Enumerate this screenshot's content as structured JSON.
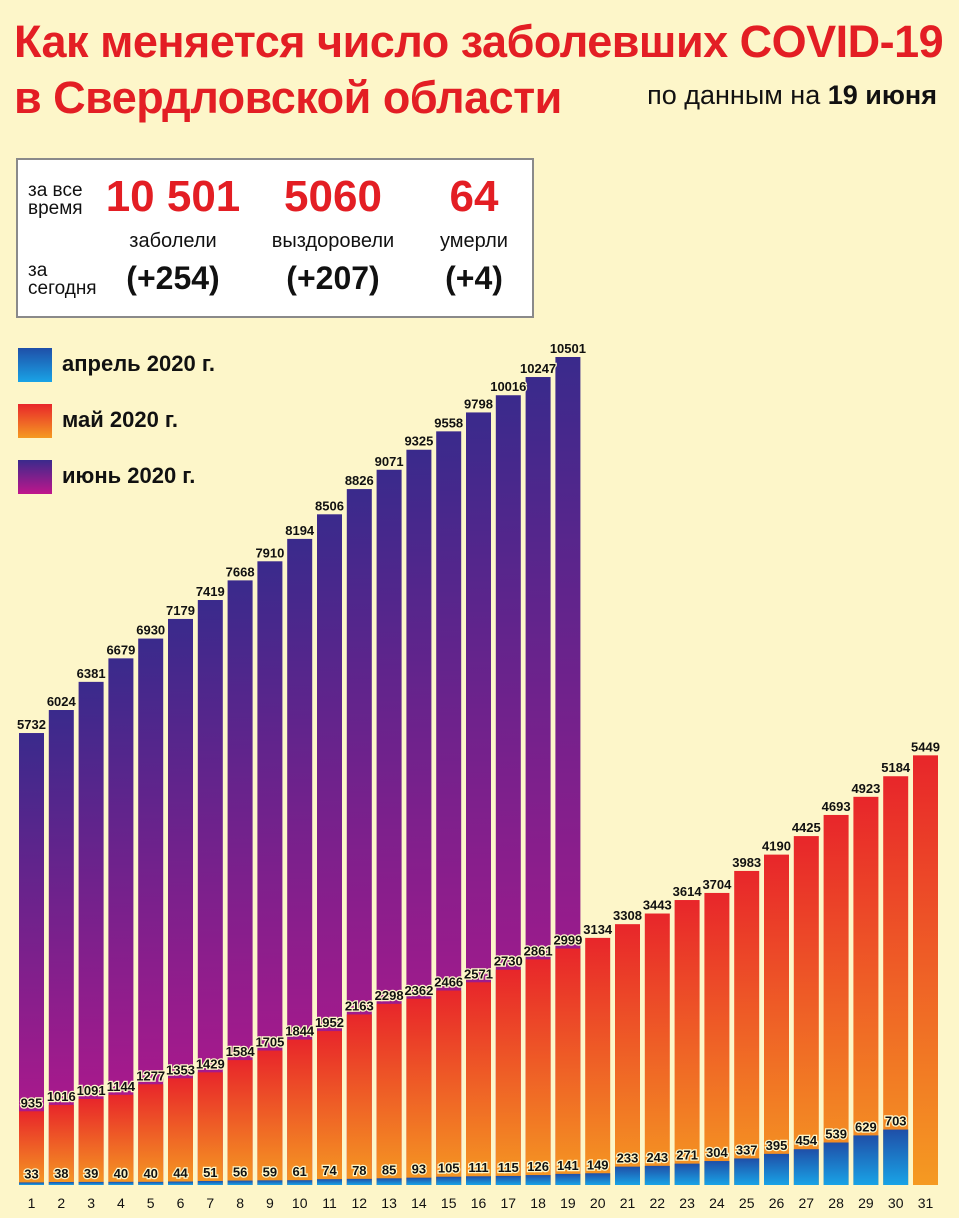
{
  "header": {
    "title_line1": "Как  меняется число  заболевших COVID-19",
    "title_line2": "в Свердловской области",
    "subtitle_prefix": "по данным на ",
    "subtitle_date": "19 июня"
  },
  "stats": {
    "label_all_time": "за все время",
    "label_today": "за сегодня",
    "items": [
      {
        "value": "10 501",
        "caption": "заболели",
        "delta": "(+254)"
      },
      {
        "value": "5060",
        "caption": "выздоровели",
        "delta": "(+207)"
      },
      {
        "value": "64",
        "caption": "умерли",
        "delta": "(+4)"
      }
    ]
  },
  "legend": [
    {
      "label": "апрель 2020 г.",
      "color_top": "#1f4fa8",
      "color_bottom": "#19a3e6"
    },
    {
      "label": "май 2020 г.",
      "color_top": "#e8262a",
      "color_bottom": "#f59a22"
    },
    {
      "label": "июнь 2020 г.",
      "color_top": "#3a2a8c",
      "color_bottom": "#c0168c"
    }
  ],
  "chart_data": {
    "type": "bar",
    "categories": [
      "1",
      "2",
      "3",
      "4",
      "5",
      "6",
      "7",
      "8",
      "9",
      "10",
      "11",
      "12",
      "13",
      "14",
      "15",
      "16",
      "17",
      "18",
      "19",
      "20",
      "21",
      "22",
      "23",
      "24",
      "25",
      "26",
      "27",
      "28",
      "29",
      "30",
      "31"
    ],
    "series": [
      {
        "name": "апрель 2020 г.",
        "values": [
          33,
          38,
          39,
          40,
          40,
          44,
          51,
          56,
          59,
          61,
          74,
          78,
          85,
          93,
          105,
          111,
          115,
          126,
          141,
          149,
          233,
          243,
          271,
          304,
          337,
          395,
          454,
          539,
          629,
          703,
          null
        ]
      },
      {
        "name": "май 2020 г.",
        "values": [
          935,
          1016,
          1091,
          1144,
          1277,
          1353,
          1429,
          1584,
          1705,
          1844,
          1952,
          2163,
          2298,
          2362,
          2466,
          2571,
          2730,
          2861,
          2999,
          3134,
          3308,
          3443,
          3614,
          3704,
          3983,
          4190,
          4425,
          4693,
          4923,
          5184,
          5449
        ]
      },
      {
        "name": "июнь 2020 г.",
        "values": [
          5732,
          6024,
          6381,
          6679,
          6930,
          7179,
          7419,
          7668,
          7910,
          8194,
          8506,
          8826,
          9071,
          9325,
          9558,
          9798,
          10016,
          10247,
          10501,
          null,
          null,
          null,
          null,
          null,
          null,
          null,
          null,
          null,
          null,
          null,
          null
        ]
      }
    ],
    "ylim": [
      0,
      10501
    ],
    "grid": false,
    "legend_position": "top-left"
  }
}
